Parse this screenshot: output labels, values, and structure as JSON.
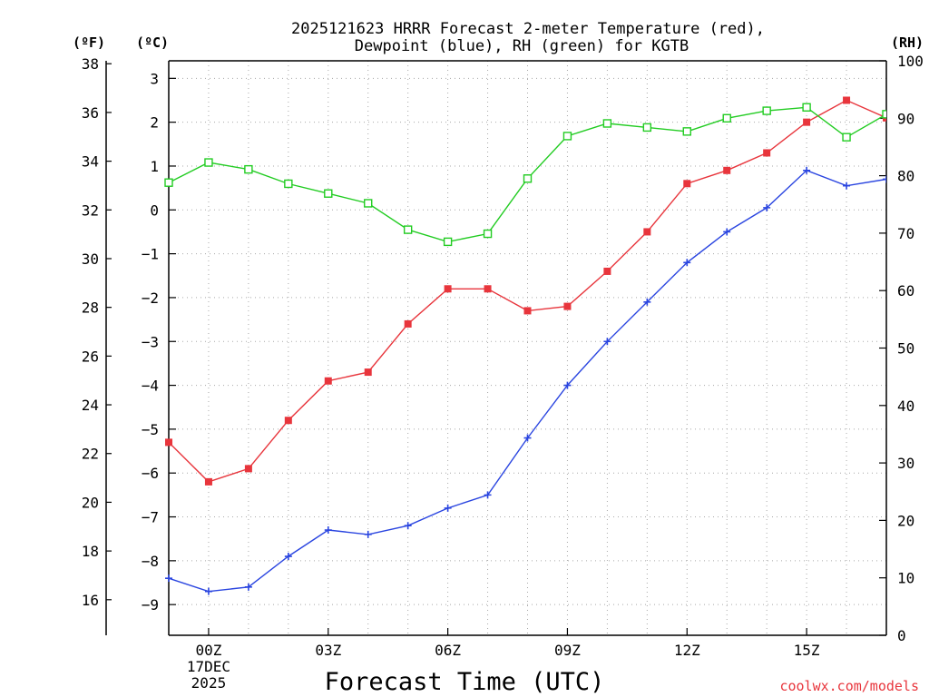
{
  "chart_data": {
    "type": "line",
    "title": [
      "2025121623 HRRR Forecast 2-meter Temperature (red),",
      "Dewpoint (blue), RH (green) for KGTB"
    ],
    "xlabel": "Forecast Time (UTC)",
    "credit": "coolwx.com/models",
    "axis_titles": {
      "fahrenheit": "(ºF)",
      "celsius": "(ºC)",
      "rh": "(RH)"
    },
    "x": [
      -1,
      0,
      1,
      2,
      3,
      4,
      5,
      6,
      7,
      8,
      9,
      10,
      11,
      12,
      13,
      14,
      15,
      16,
      17
    ],
    "xlim": [
      -1,
      17
    ],
    "x_ticks": [
      {
        "x": 0,
        "lines": [
          "00Z",
          "17DEC",
          "2025"
        ]
      },
      {
        "x": 3,
        "lines": [
          "03Z"
        ]
      },
      {
        "x": 6,
        "lines": [
          "06Z"
        ]
      },
      {
        "x": 9,
        "lines": [
          "09Z"
        ]
      },
      {
        "x": 12,
        "lines": [
          "12Z"
        ]
      },
      {
        "x": 15,
        "lines": [
          "15Z"
        ]
      }
    ],
    "celsius_ylim": [
      -9.7,
      3.4
    ],
    "celsius_ticks": [
      3,
      2,
      1,
      0,
      -1,
      -2,
      -3,
      -4,
      -5,
      -6,
      -7,
      -8,
      -9
    ],
    "fahrenheit_ticks": [
      38,
      36,
      34,
      32,
      30,
      28,
      26,
      24,
      22,
      20,
      18,
      16
    ],
    "rh_ylim": [
      0,
      100
    ],
    "rh_ticks": [
      100,
      90,
      80,
      70,
      60,
      50,
      40,
      30,
      20,
      10,
      0
    ],
    "grid": true,
    "series": [
      {
        "name": "Temperature",
        "axis": "celsius",
        "color": "#e8353c",
        "marker": "filled-square",
        "values": [
          -5.3,
          -6.2,
          -5.9,
          -4.8,
          -3.9,
          -3.7,
          -2.6,
          -1.8,
          -1.8,
          -2.3,
          -2.2,
          -1.4,
          -0.5,
          0.6,
          0.9,
          1.3,
          2.0,
          2.5,
          2.1
        ]
      },
      {
        "name": "Dewpoint",
        "axis": "celsius",
        "color": "#2a45e0",
        "marker": "plus",
        "values": [
          -8.4,
          -8.7,
          -8.6,
          -7.9,
          -7.3,
          -7.4,
          -7.2,
          -6.8,
          -6.5,
          -5.2,
          -4.0,
          -3.0,
          -2.1,
          -1.2,
          -0.5,
          0.05,
          0.9,
          0.55,
          0.7
        ]
      },
      {
        "name": "RH",
        "axis": "rh",
        "color": "#22cc22",
        "marker": "open-square",
        "values": [
          78.8,
          82.3,
          81.1,
          78.6,
          76.9,
          75.2,
          70.6,
          68.5,
          69.9,
          79.5,
          86.9,
          89.1,
          88.4,
          87.7,
          90.0,
          91.3,
          91.9,
          86.7,
          90.7
        ]
      }
    ]
  }
}
